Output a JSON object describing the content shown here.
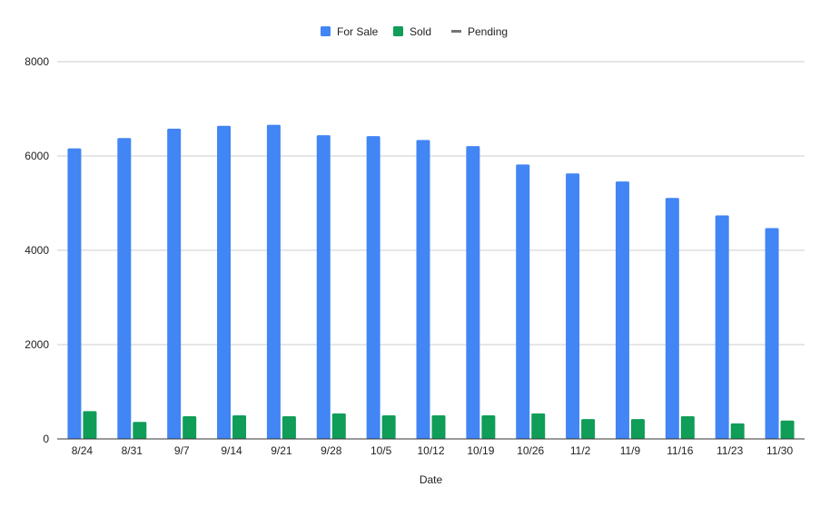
{
  "chart_data": {
    "type": "bar",
    "title": "",
    "xlabel": "Date",
    "ylabel": "",
    "ylim": [
      0,
      8000
    ],
    "yticks": [
      0,
      2000,
      4000,
      6000,
      8000
    ],
    "ytick_labels": [
      "0",
      "2000",
      "4000",
      "6000",
      "8000"
    ],
    "categories": [
      "8/24",
      "8/31",
      "9/7",
      "9/14",
      "9/21",
      "9/28",
      "10/5",
      "10/12",
      "10/19",
      "10/26",
      "11/2",
      "11/9",
      "11/16",
      "11/23",
      "11/30"
    ],
    "series": [
      {
        "name": "For Sale",
        "color": "#4285f4",
        "values": [
          6160,
          6380,
          6580,
          6640,
          6660,
          6440,
          6420,
          6340,
          6210,
          5820,
          5630,
          5460,
          5110,
          4740,
          4470
        ]
      },
      {
        "name": "Sold",
        "color": "#0f9d58",
        "values": [
          590,
          360,
          480,
          500,
          480,
          540,
          500,
          500,
          500,
          540,
          420,
          420,
          480,
          330,
          390
        ]
      },
      {
        "name": "Pending",
        "color": "#757575",
        "values": [
          0,
          0,
          0,
          0,
          0,
          0,
          0,
          0,
          0,
          0,
          0,
          0,
          0,
          0,
          0
        ]
      }
    ],
    "legend_position": "top-center",
    "grid": true
  }
}
